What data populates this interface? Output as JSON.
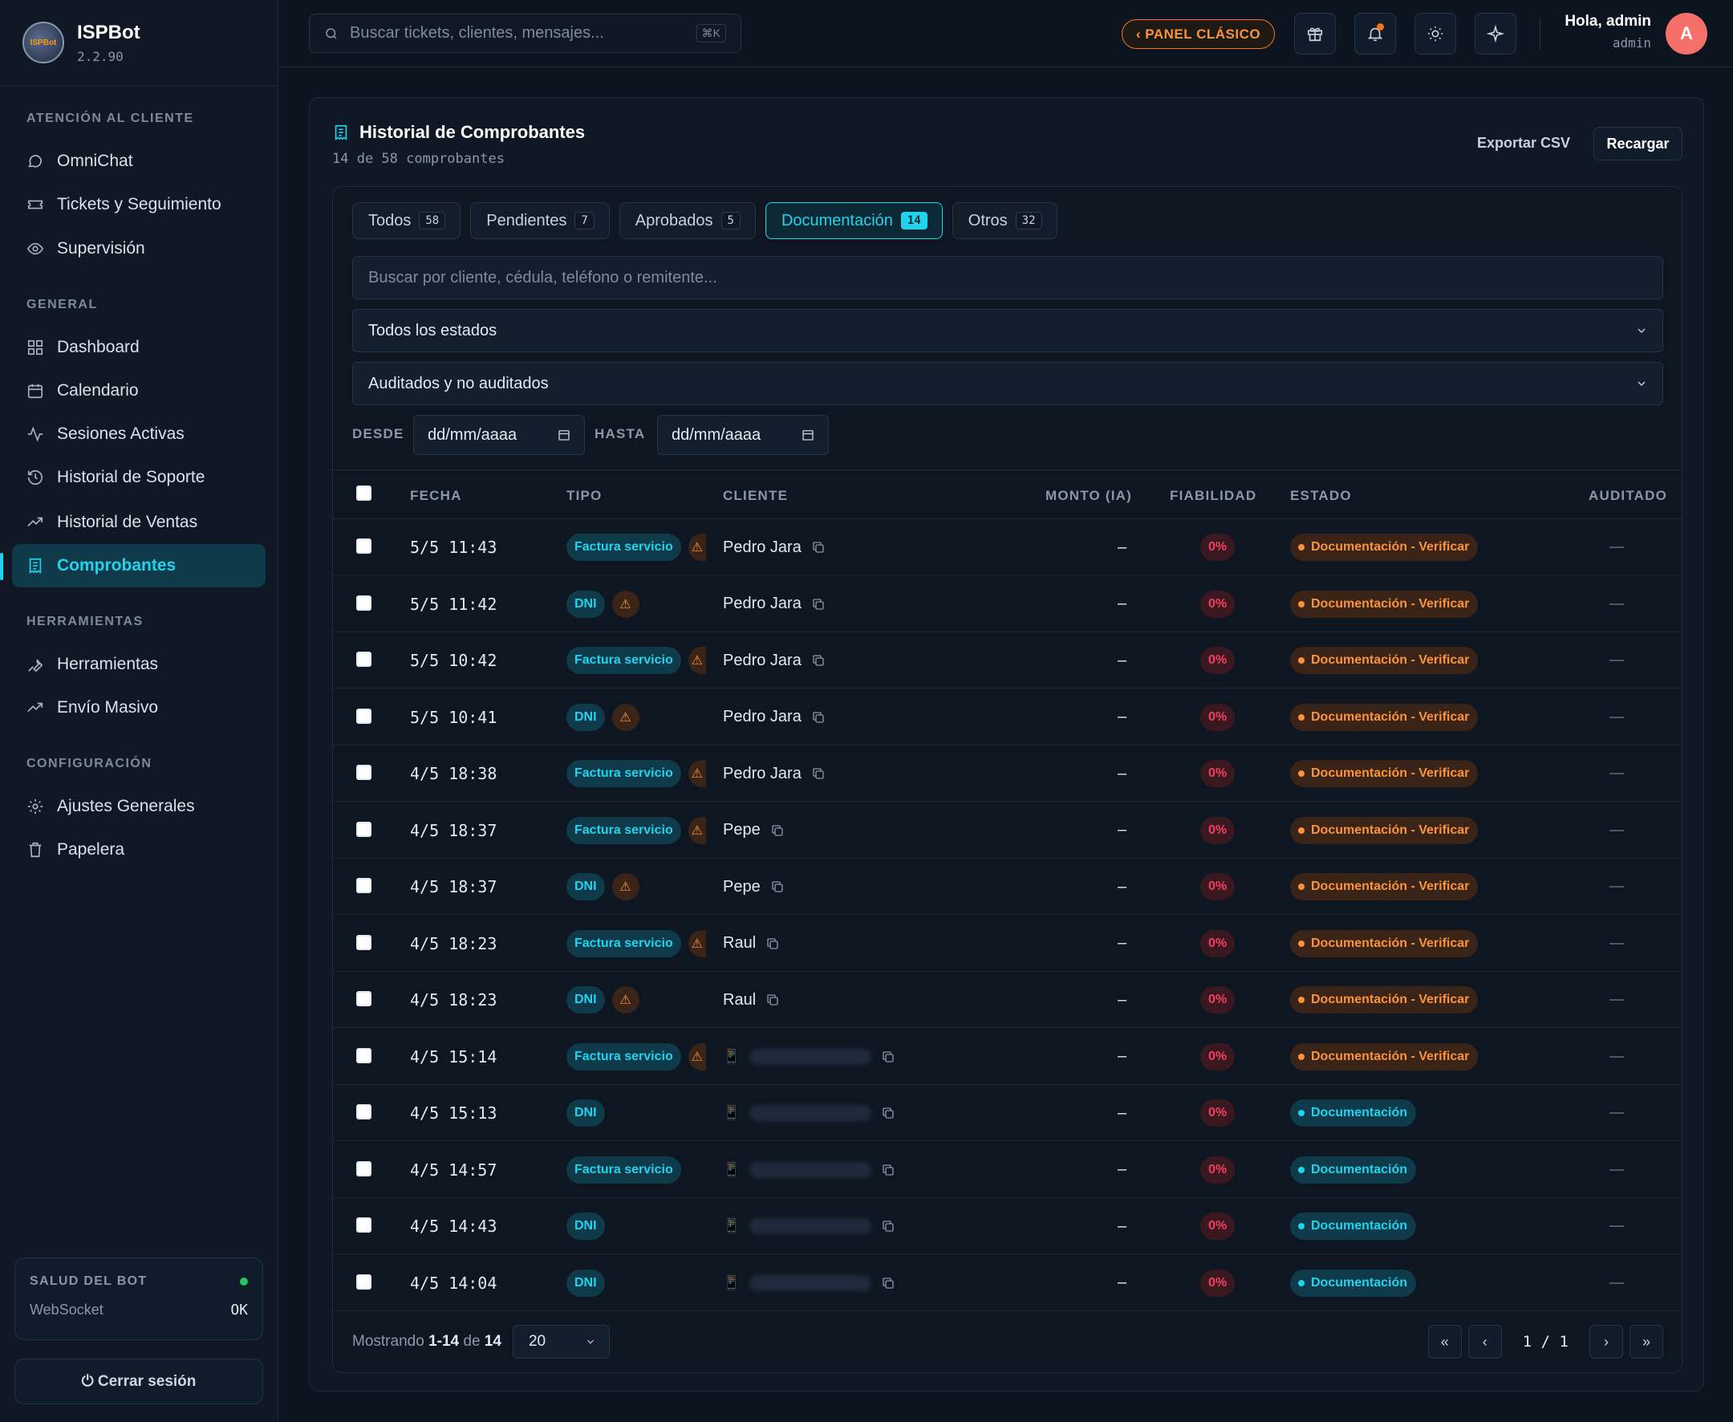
{
  "app": {
    "name": "ISPBot",
    "version": "2.2.90",
    "logo_text": "ISPBot"
  },
  "sidebar": {
    "sections": [
      {
        "title": "ATENCIÓN AL CLIENTE",
        "items": [
          {
            "label": "OmniChat",
            "icon": "chat-icon"
          },
          {
            "label": "Tickets y Seguimiento",
            "icon": "ticket-icon"
          },
          {
            "label": "Supervisión",
            "icon": "eye-icon"
          }
        ]
      },
      {
        "title": "GENERAL",
        "items": [
          {
            "label": "Dashboard",
            "icon": "grid-icon"
          },
          {
            "label": "Calendario",
            "icon": "calendar-icon"
          },
          {
            "label": "Sesiones Activas",
            "icon": "activity-icon"
          },
          {
            "label": "Historial de Soporte",
            "icon": "history-icon"
          },
          {
            "label": "Historial de Ventas",
            "icon": "trending-icon"
          },
          {
            "label": "Comprobantes",
            "icon": "receipt-icon",
            "active": true
          }
        ]
      },
      {
        "title": "HERRAMIENTAS",
        "items": [
          {
            "label": "Herramientas",
            "icon": "wrench-icon"
          },
          {
            "label": "Envío Masivo",
            "icon": "trending-icon"
          }
        ]
      },
      {
        "title": "CONFIGURACIÓN",
        "items": [
          {
            "label": "Ajustes Generales",
            "icon": "gear-icon"
          },
          {
            "label": "Papelera",
            "icon": "trash-icon"
          }
        ]
      }
    ],
    "health": {
      "title": "SALUD DEL BOT",
      "label": "WebSocket",
      "value": "OK"
    },
    "logout": "⏻ Cerrar sesión"
  },
  "topbar": {
    "search_placeholder": "Buscar tickets, clientes, mensajes...",
    "shortcut": "⌘K",
    "classic_button": "‹ PANEL CLÁSICO",
    "greeting": "Hola, admin",
    "role": "admin",
    "avatar_initial": "A"
  },
  "page": {
    "title": "Historial de Comprobantes",
    "subtitle": "14 de 58 comprobantes",
    "export_label": "Exportar CSV",
    "reload_label": "Recargar",
    "tabs": [
      {
        "label": "Todos",
        "count": "58"
      },
      {
        "label": "Pendientes",
        "count": "7"
      },
      {
        "label": "Aprobados",
        "count": "5"
      },
      {
        "label": "Documentación",
        "count": "14",
        "active": true
      },
      {
        "label": "Otros",
        "count": "32"
      }
    ],
    "filter_search_placeholder": "Buscar por cliente, cédula, teléfono o remitente...",
    "filter_status": "Todos los estados",
    "filter_audit": "Auditados y no auditados",
    "date_from_label": "DESDE",
    "date_to_label": "HASTA",
    "date_placeholder": "dd/mm/aaaa"
  },
  "table": {
    "columns": [
      "FECHA",
      "TIPO",
      "CLIENTE",
      "MONTO (IA)",
      "FIABILIDAD",
      "ESTADO",
      "AUDITADO"
    ],
    "rows": [
      {
        "fecha": "5/5 11:43",
        "tipo": "Factura servicio",
        "warn": true,
        "cliente": "Pedro Jara",
        "monto": "–",
        "fiabilidad": "0%",
        "estado": "Documentación - Verificar",
        "estado_kind": "warn",
        "auditado": "—"
      },
      {
        "fecha": "5/5 11:42",
        "tipo": "DNI",
        "warn": true,
        "cliente": "Pedro Jara",
        "monto": "–",
        "fiabilidad": "0%",
        "estado": "Documentación - Verificar",
        "estado_kind": "warn",
        "auditado": "—"
      },
      {
        "fecha": "5/5 10:42",
        "tipo": "Factura servicio",
        "warn": true,
        "cliente": "Pedro Jara",
        "monto": "–",
        "fiabilidad": "0%",
        "estado": "Documentación - Verificar",
        "estado_kind": "warn",
        "auditado": "—"
      },
      {
        "fecha": "5/5 10:41",
        "tipo": "DNI",
        "warn": true,
        "cliente": "Pedro Jara",
        "monto": "–",
        "fiabilidad": "0%",
        "estado": "Documentación - Verificar",
        "estado_kind": "warn",
        "auditado": "—"
      },
      {
        "fecha": "4/5 18:38",
        "tipo": "Factura servicio",
        "warn": true,
        "cliente": "Pedro Jara",
        "monto": "–",
        "fiabilidad": "0%",
        "estado": "Documentación - Verificar",
        "estado_kind": "warn",
        "auditado": "—"
      },
      {
        "fecha": "4/5 18:37",
        "tipo": "Factura servicio",
        "warn": true,
        "cliente": "Pepe",
        "monto": "–",
        "fiabilidad": "0%",
        "estado": "Documentación - Verificar",
        "estado_kind": "warn",
        "auditado": "—"
      },
      {
        "fecha": "4/5 18:37",
        "tipo": "DNI",
        "warn": true,
        "cliente": "Pepe",
        "monto": "–",
        "fiabilidad": "0%",
        "estado": "Documentación - Verificar",
        "estado_kind": "warn",
        "auditado": "—"
      },
      {
        "fecha": "4/5 18:23",
        "tipo": "Factura servicio",
        "warn": true,
        "cliente": "Raul",
        "monto": "–",
        "fiabilidad": "0%",
        "estado": "Documentación - Verificar",
        "estado_kind": "warn",
        "auditado": "—"
      },
      {
        "fecha": "4/5 18:23",
        "tipo": "DNI",
        "warn": true,
        "cliente": "Raul",
        "monto": "–",
        "fiabilidad": "0%",
        "estado": "Documentación - Verificar",
        "estado_kind": "warn",
        "auditado": "—"
      },
      {
        "fecha": "4/5 15:14",
        "tipo": "Factura servicio",
        "warn": true,
        "cliente": "",
        "phone": true,
        "monto": "–",
        "fiabilidad": "0%",
        "estado": "Documentación - Verificar",
        "estado_kind": "warn",
        "auditado": "—"
      },
      {
        "fecha": "4/5 15:13",
        "tipo": "DNI",
        "warn": false,
        "cliente": "",
        "phone": true,
        "monto": "–",
        "fiabilidad": "0%",
        "estado": "Documentación",
        "estado_kind": "doc",
        "auditado": "—"
      },
      {
        "fecha": "4/5 14:57",
        "tipo": "Factura servicio",
        "warn": false,
        "cliente": "",
        "phone": true,
        "monto": "–",
        "fiabilidad": "0%",
        "estado": "Documentación",
        "estado_kind": "doc",
        "auditado": "—"
      },
      {
        "fecha": "4/5 14:43",
        "tipo": "DNI",
        "warn": false,
        "cliente": "",
        "phone": true,
        "monto": "–",
        "fiabilidad": "0%",
        "estado": "Documentación",
        "estado_kind": "doc",
        "auditado": "—"
      },
      {
        "fecha": "4/5 14:04",
        "tipo": "DNI",
        "warn": false,
        "cliente": "",
        "phone": true,
        "monto": "–",
        "fiabilidad": "0%",
        "estado": "Documentación",
        "estado_kind": "doc",
        "auditado": "—"
      }
    ]
  },
  "footer": {
    "showing_prefix": "Mostrando",
    "showing_range": "1-14",
    "showing_of": "de",
    "showing_total": "14",
    "per_page": "20",
    "page_info": "1 / 1",
    "first": "«",
    "prev": "‹",
    "next": "›",
    "last": "»"
  },
  "colors": {
    "accent": "#22d3ee",
    "warning": "#fb923c",
    "danger": "#f43f5e",
    "ok": "#22c55e"
  }
}
